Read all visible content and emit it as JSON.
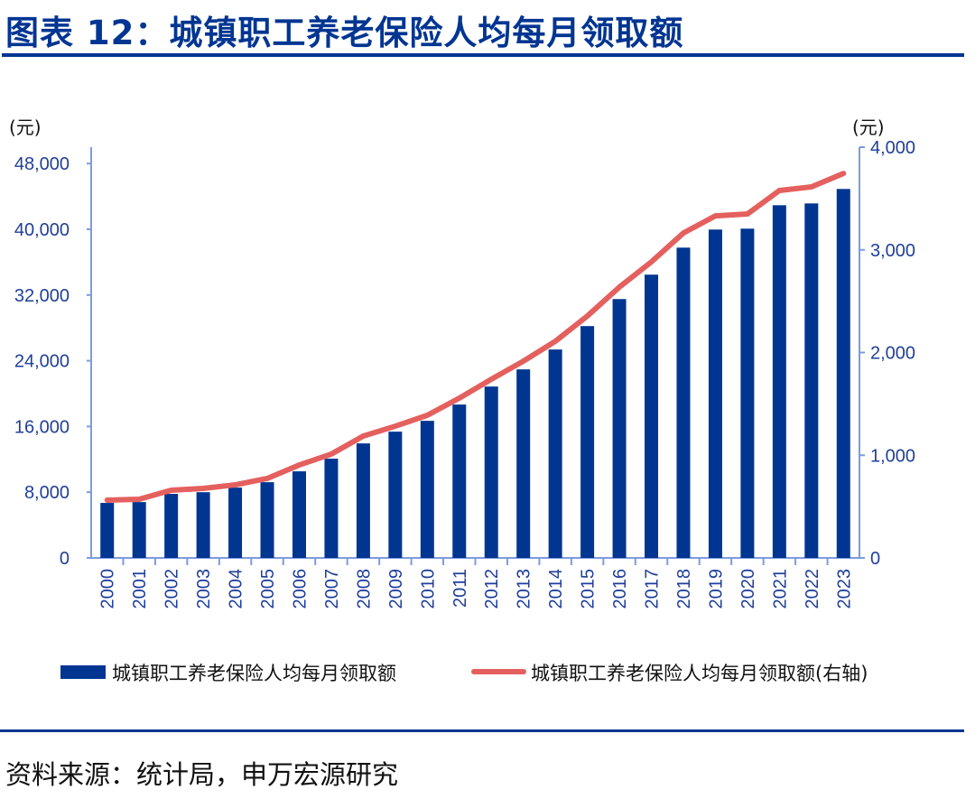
{
  "title": "图表 12：城镇职工养老保险人均每月领取额",
  "source": "资料来源：统计局，申万宏源研究",
  "chart_data": {
    "type": "bar+line",
    "title": "",
    "categories": [
      "2000",
      "2001",
      "2002",
      "2003",
      "2004",
      "2005",
      "2006",
      "2007",
      "2008",
      "2009",
      "2010",
      "2011",
      "2012",
      "2013",
      "2014",
      "2015",
      "2016",
      "2017",
      "2018",
      "2019",
      "2020",
      "2021",
      "2022",
      "2023"
    ],
    "left_axis": {
      "unit_label": "(元)",
      "ylim": [
        0,
        50000
      ],
      "ticks": [
        0,
        8000,
        16000,
        24000,
        32000,
        40000,
        48000
      ],
      "tick_labels": [
        "0",
        "8,000",
        "16,000",
        "24,000",
        "32,000",
        "40,000",
        "48,000"
      ]
    },
    "right_axis": {
      "unit_label": "(元)",
      "ylim": [
        0,
        4000
      ],
      "ticks": [
        0,
        1000,
        2000,
        3000,
        4000
      ],
      "tick_labels": [
        "0",
        "1,000",
        "2,000",
        "3,000",
        "4,000"
      ]
    },
    "series": [
      {
        "name": "城镇职工养老保险人均每月领取额",
        "type": "bar",
        "axis": "left",
        "color": "#003592",
        "values": [
          6700,
          6800,
          7800,
          8000,
          8560,
          9220,
          10540,
          12080,
          13940,
          15370,
          16690,
          18670,
          20860,
          22950,
          25370,
          28220,
          31510,
          34480,
          37770,
          39970,
          40080,
          42930,
          43150,
          44910
        ]
      },
      {
        "name": "城镇职工养老保险人均每月领取额(右轴)",
        "type": "line",
        "axis": "right",
        "color": "#e4605e",
        "values": [
          563,
          571,
          659,
          677,
          712,
          774,
          905,
          1011,
          1187,
          1283,
          1389,
          1556,
          1740,
          1916,
          2110,
          2356,
          2637,
          2883,
          3164,
          3331,
          3349,
          3578,
          3613,
          3744
        ]
      }
    ],
    "grid": false,
    "legend_placement": "bottom",
    "axis_color": "#7c9be0"
  }
}
